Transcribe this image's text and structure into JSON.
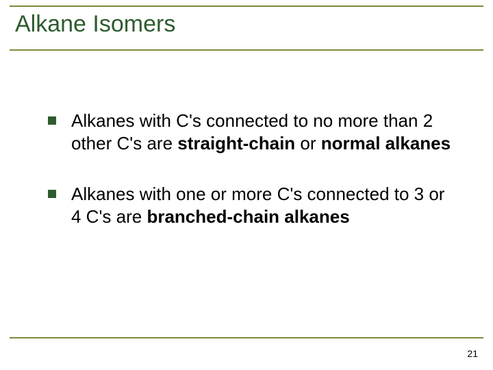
{
  "colors": {
    "accent": "#7a8c3a",
    "title_text": "#2e5b2e",
    "bullet_square": "#2e5b2e",
    "body_text": "#000000"
  },
  "title": "Alkane Isomers",
  "bullets": [
    {
      "pre": "Alkanes with C's connected to no more than 2 other C's are ",
      "bold1": "straight-chain",
      "mid": " or ",
      "bold2": "normal alkanes",
      "post": ""
    },
    {
      "pre": "Alkanes with one or more C's connected to 3 or 4 C's are ",
      "bold1": "branched-chain alkanes",
      "mid": "",
      "bold2": "",
      "post": ""
    }
  ],
  "page_number": "21"
}
